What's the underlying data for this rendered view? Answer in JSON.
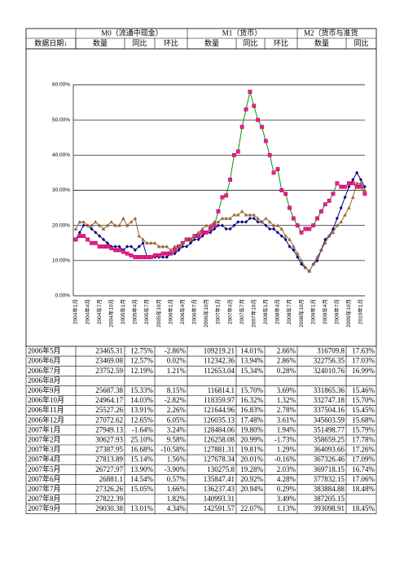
{
  "header": {
    "groups": [
      "M0（流通中现金）",
      "M1（货币）",
      "M2（货币与准货"
    ],
    "columns": [
      "数据日期↓",
      "数量",
      "同比",
      "环比",
      "数量",
      "同比",
      "环比",
      "数量",
      "同比"
    ]
  },
  "chart_data": {
    "type": "line",
    "categories": [
      "2004年1月",
      null,
      null,
      "2004年4月",
      null,
      null,
      "2004年7月",
      null,
      null,
      "2004年10月",
      null,
      null,
      "2005年1月",
      null,
      null,
      "2005年4月",
      null,
      null,
      "2005年7月",
      null,
      null,
      "2005年10月",
      null,
      null,
      "2006年1月",
      null,
      null,
      "2006年4月",
      null,
      null,
      "2006年7月",
      null,
      null,
      "2006年10月",
      null,
      null,
      "2007年1月",
      null,
      null,
      "2007年4月",
      null,
      null,
      "2007年7月",
      null,
      null,
      "2007年10月",
      null,
      null,
      "2008年1月",
      null,
      null,
      "2008年4月",
      null,
      null,
      "2008年7月",
      null,
      null,
      "2008年10月",
      null,
      null,
      "2009年1月",
      null,
      null,
      "2009年4月",
      null,
      null,
      "2009年7月",
      null,
      null,
      "2009年10月",
      null,
      null,
      "2010年1月",
      null
    ],
    "ylim": [
      0,
      60
    ],
    "yticks": [
      {
        "value": 0,
        "label": "0.00%"
      },
      {
        "value": 10,
        "label": "10.00%"
      },
      {
        "value": 20,
        "label": "20.00%"
      },
      {
        "value": 30,
        "label": "30.00%"
      },
      {
        "value": 40,
        "label": "40.00%"
      },
      {
        "value": 50,
        "label": "50.00%"
      },
      {
        "value": 60,
        "label": "60.00%"
      }
    ],
    "grid": true,
    "series": [
      {
        "color": "#000080",
        "marker": "diamond",
        "values": [
          16,
          18,
          20,
          20,
          19,
          18,
          17,
          16,
          15,
          14,
          14,
          14,
          13,
          14,
          14,
          13,
          14,
          15,
          11,
          11,
          11,
          11,
          11,
          11,
          12,
          12,
          13,
          14,
          14,
          15,
          16,
          16,
          17,
          18,
          18,
          19,
          20,
          20,
          19,
          19,
          20,
          21,
          21,
          21,
          22,
          22,
          21,
          21,
          20,
          19,
          19,
          18,
          17,
          16,
          14,
          13,
          11,
          9,
          8,
          7,
          9,
          10,
          13,
          16,
          17,
          19,
          22,
          25,
          28,
          31,
          33,
          35,
          33,
          31
        ]
      },
      {
        "color": "#ff1493",
        "line_color": "#009900",
        "marker": "square",
        "values": [
          16,
          17,
          17,
          16,
          15,
          15,
          14,
          14,
          14,
          13.5,
          13,
          13,
          12.5,
          12,
          11.5,
          11,
          11,
          11,
          11,
          11,
          11.5,
          11.5,
          12,
          12,
          12,
          13,
          14,
          15,
          16,
          16,
          17,
          17,
          18,
          18,
          19,
          20,
          24,
          28,
          28.5,
          33,
          40,
          41,
          48,
          53,
          58,
          54,
          50,
          48,
          44,
          40,
          35,
          36,
          30,
          29,
          25,
          22,
          20,
          18,
          19,
          19,
          20,
          22,
          24,
          26,
          27,
          29,
          32,
          31,
          31,
          32,
          32,
          31,
          31,
          29
        ]
      },
      {
        "color": "#996633",
        "marker": "triangle",
        "values": [
          19,
          21,
          21,
          20,
          20,
          21,
          20,
          19,
          20,
          21,
          20,
          20,
          22,
          20,
          21,
          22,
          17,
          16,
          15,
          15,
          15,
          14,
          14,
          14,
          13,
          14,
          14,
          15,
          16,
          16,
          17,
          18,
          19,
          20,
          20,
          21,
          21,
          22,
          22,
          22,
          23,
          23,
          24,
          23,
          23,
          23,
          22,
          21,
          22,
          21,
          20,
          20,
          19,
          17,
          16,
          14,
          12,
          10,
          8,
          7,
          9,
          11,
          13,
          15,
          17,
          18,
          20,
          21,
          23,
          25,
          28,
          32,
          32,
          30
        ]
      }
    ]
  },
  "table": {
    "rows": [
      [
        "2006年5月",
        "23465.31",
        "12.75%",
        "-2.86%",
        "109219.21",
        "14.01%",
        "2.66%",
        "316709.8",
        "17.63%"
      ],
      [
        "2006年6月",
        "23469.08",
        "12.57%",
        "0.02%",
        "112342.36",
        "13.94%",
        "2.86%",
        "322756.35",
        "17.03%"
      ],
      [
        "2006年7月",
        "23752.59",
        "12.19%",
        "1.21%",
        "112653.04",
        "15.34%",
        "0.28%",
        "324010.76",
        "16.99%"
      ],
      [
        "2006年8月",
        null,
        null,
        null,
        null,
        null,
        null,
        null,
        null
      ],
      [
        "2006年9月",
        "25687.38",
        "15.33%",
        "8.15%",
        "116814.1",
        "15.70%",
        "3.69%",
        "331865.36",
        "15.46%"
      ],
      [
        "2006年10月",
        "24964.17",
        "14.03%",
        "-2.82%",
        "118359.97",
        "16.32%",
        "1.32%",
        "332747.18",
        "15.70%"
      ],
      [
        "2006年11月",
        "25527.26",
        "13.91%",
        "2.26%",
        "121644.96",
        "16.83%",
        "2.78%",
        "337504.16",
        "15.45%"
      ],
      [
        "2006年12月",
        "27072.62",
        "12.65%",
        "6.05%",
        "126035.13",
        "17.48%",
        "3.61%",
        "345603.59",
        "15.68%"
      ],
      [
        "2007年1月",
        "27949.13",
        "-1.64%",
        "3.24%",
        "128484.06",
        "19.80%",
        "1.94%",
        "351498.77",
        "15.79%"
      ],
      [
        "2007年2月",
        "30627.93",
        "25.10%",
        "9.58%",
        "126258.08",
        "20.99%",
        "-1.73%",
        "358659.25",
        "17.78%"
      ],
      [
        "2007年3月",
        "27387.95",
        "16.68%",
        "-10.58%",
        "127881.31",
        "19.81%",
        "1.29%",
        "364093.66",
        "17.26%"
      ],
      [
        "2007年4月",
        "27813.89",
        "15.14%",
        "1.56%",
        "127678.34",
        "20.01%",
        "-0.16%",
        "367326.46",
        "17.09%"
      ],
      [
        "2007年5月",
        "26727.97",
        "13.90%",
        "-3.90%",
        "130275.8",
        "19.28%",
        "2.03%",
        "369718.15",
        "16.74%"
      ],
      [
        "2007年6月",
        "26881.1",
        "14.54%",
        "0.57%",
        "135847.41",
        "20.92%",
        "4.28%",
        "377832.15",
        "17.06%"
      ],
      [
        "2007年7月",
        "27326.26",
        "15.05%",
        "1.66%",
        "136237.43",
        "20.94%",
        "0.29%",
        "383884.88",
        "18.48%"
      ],
      [
        "2007年8月",
        "27822.39",
        null,
        "1.82%",
        "140993.31",
        null,
        "3.49%",
        "387205.15",
        null
      ],
      [
        "2007年9月",
        "29030.38",
        "13.01%",
        "4.34%",
        "142591.57",
        "22.07%",
        "1.13%",
        "393098.91",
        "18.45%"
      ]
    ]
  }
}
